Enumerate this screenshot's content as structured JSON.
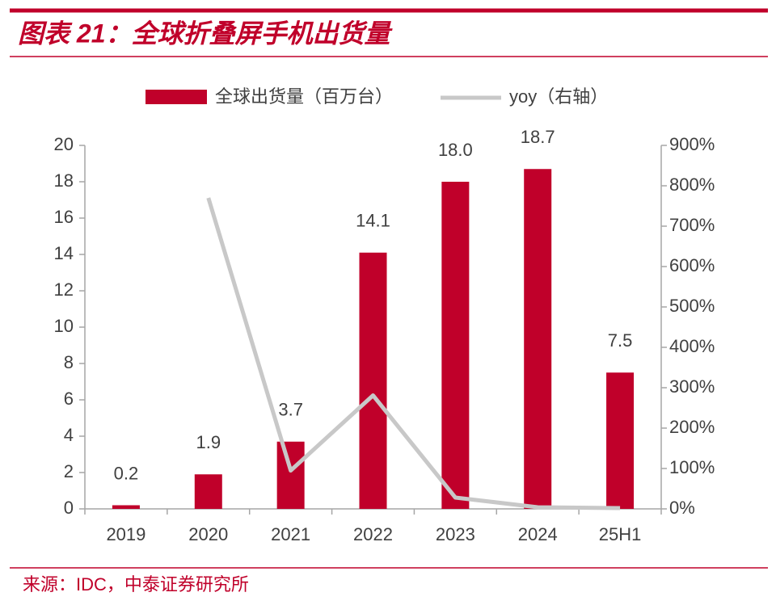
{
  "chart_data": {
    "type": "bar",
    "title": "图表 21：全球折叠屏手机出货量",
    "source": "来源：IDC，中泰证券研究所",
    "categories": [
      "2019",
      "2020",
      "2021",
      "2022",
      "2023",
      "2024",
      "25H1"
    ],
    "series": [
      {
        "name": "全球出货量（百万台）",
        "type": "bar",
        "color": "#c0002a",
        "values": [
          0.2,
          1.9,
          3.7,
          14.1,
          18.0,
          18.7,
          7.5
        ],
        "value_labels": [
          "0.2",
          "1.9",
          "3.7",
          "14.1",
          "18.0",
          "18.7",
          "7.5"
        ]
      },
      {
        "name": "yoy（右轴）",
        "type": "line",
        "axis": "y2",
        "color": "#c8c8c8",
        "values": [
          null,
          770,
          95,
          281,
          28,
          4,
          2
        ]
      }
    ],
    "ylim": [
      0,
      20
    ],
    "yticks": [
      0,
      2,
      4,
      6,
      8,
      10,
      12,
      14,
      16,
      18,
      20
    ],
    "y2lim": [
      0,
      900
    ],
    "y2ticks": [
      {
        "value": 0,
        "label": "0%"
      },
      {
        "value": 100,
        "label": "100%"
      },
      {
        "value": 200,
        "label": "200%"
      },
      {
        "value": 300,
        "label": "300%"
      },
      {
        "value": 400,
        "label": "400%"
      },
      {
        "value": 500,
        "label": "500%"
      },
      {
        "value": 600,
        "label": "600%"
      },
      {
        "value": 700,
        "label": "700%"
      },
      {
        "value": 800,
        "label": "800%"
      },
      {
        "value": 900,
        "label": "900%"
      }
    ],
    "grid": false
  }
}
